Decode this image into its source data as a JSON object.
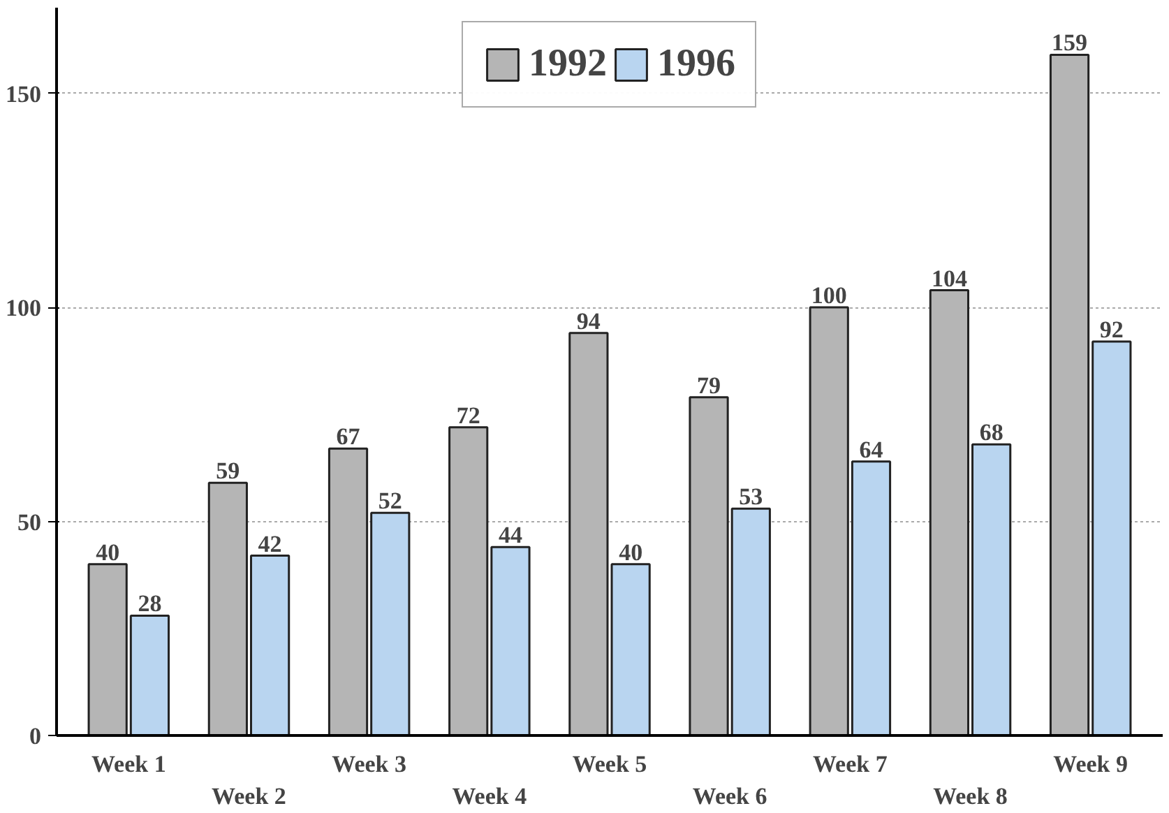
{
  "chart_data": {
    "type": "bar",
    "categories": [
      "Week 1",
      "Week 2",
      "Week 3",
      "Week 4",
      "Week 5",
      "Week 6",
      "Week 7",
      "Week 8",
      "Week 9"
    ],
    "series": [
      {
        "name": "1992",
        "color": "#b5b5b5",
        "values": [
          40,
          59,
          67,
          72,
          94,
          79,
          100,
          104,
          159
        ]
      },
      {
        "name": "1996",
        "color": "#b9d5f0",
        "values": [
          28,
          42,
          52,
          44,
          40,
          53,
          64,
          68,
          92
        ]
      }
    ],
    "ylim": [
      0,
      170
    ],
    "yticks": [
      0,
      50,
      100,
      150
    ],
    "grid": "y",
    "legend": "top",
    "data_labels": true
  }
}
